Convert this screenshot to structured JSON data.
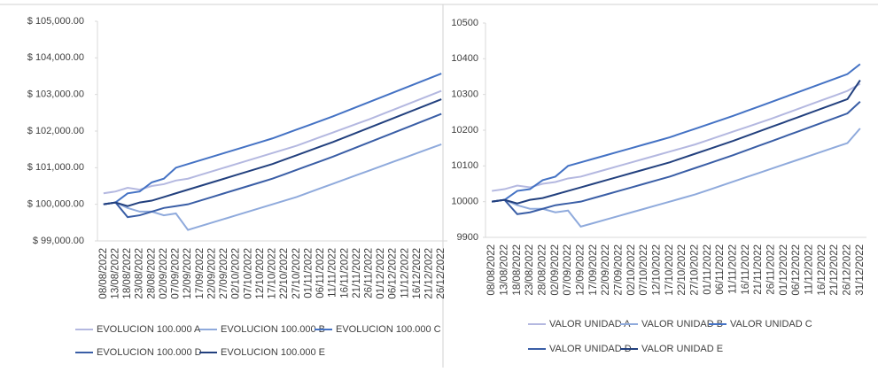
{
  "chart_data": [
    {
      "type": "line",
      "categories": [
        "08/08/2022",
        "13/08/2022",
        "18/08/2022",
        "23/08/2022",
        "28/08/2022",
        "02/09/2022",
        "07/09/2022",
        "12/09/2022",
        "17/09/2022",
        "22/09/2022",
        "27/09/2022",
        "02/10/2022",
        "07/10/2022",
        "12/10/2022",
        "17/10/2022",
        "22/10/2022",
        "27/10/2022",
        "01/11/2022",
        "06/11/2022",
        "11/11/2022",
        "16/11/2022",
        "21/11/2022",
        "26/11/2022",
        "01/12/2022",
        "06/12/2022",
        "11/12/2022",
        "16/12/2022",
        "21/12/2022",
        "26/12/2022"
      ],
      "ylim": [
        99000,
        105000
      ],
      "yticks": [
        {
          "value": 99000,
          "label": "$ 99,000.00"
        },
        {
          "value": 100000,
          "label": "$ 100,000.00"
        },
        {
          "value": 101000,
          "label": "$ 101,000.00"
        },
        {
          "value": 102000,
          "label": "$ 102,000.00"
        },
        {
          "value": 103000,
          "label": "$ 103,000.00"
        },
        {
          "value": 104000,
          "label": "$ 104,000.00"
        },
        {
          "value": 105000,
          "label": "$ 105,000.00"
        }
      ],
      "series": [
        {
          "name": "EVOLUCION 100.000 A",
          "color": "#b4b8e0",
          "values": [
            100300,
            100350,
            100450,
            100400,
            100500,
            100550,
            100650,
            100700,
            100800,
            100900,
            101000,
            101100,
            101200,
            101300,
            101400,
            101500,
            101600,
            101720,
            101840,
            101960,
            102080,
            102200,
            102320,
            102450,
            102580,
            102710,
            102840,
            102970,
            103100
          ]
        },
        {
          "name": "EVOLUCION 100.000 B",
          "color": "#8faadc",
          "values": [
            100000,
            100050,
            99900,
            99800,
            99800,
            99700,
            99750,
            99300,
            99400,
            99500,
            99600,
            99700,
            99800,
            99900,
            100000,
            100100,
            100200,
            100320,
            100440,
            100560,
            100680,
            100800,
            100920,
            101040,
            101160,
            101280,
            101400,
            101520,
            101640
          ]
        },
        {
          "name": "EVOLUCION 100.000 C",
          "color": "#4472c4",
          "values": [
            100000,
            100050,
            100300,
            100350,
            100600,
            100700,
            101000,
            101100,
            101200,
            101300,
            101400,
            101500,
            101600,
            101700,
            101800,
            101920,
            102040,
            102160,
            102280,
            102400,
            102530,
            102660,
            102790,
            102920,
            103050,
            103180,
            103310,
            103440,
            103570
          ]
        },
        {
          "name": "EVOLUCION 100.000 D",
          "color": "#3a5ea6",
          "values": [
            100000,
            100050,
            99650,
            99700,
            99800,
            99900,
            99950,
            100000,
            100100,
            100200,
            100300,
            100400,
            100500,
            100600,
            100700,
            100820,
            100940,
            101060,
            101180,
            101300,
            101430,
            101560,
            101690,
            101820,
            101950,
            102080,
            102210,
            102340,
            102470
          ]
        },
        {
          "name": "EVOLUCION 100.000 E",
          "color": "#22407e",
          "values": [
            100000,
            100050,
            99950,
            100050,
            100100,
            100200,
            100300,
            100400,
            100500,
            100600,
            100700,
            100800,
            100900,
            101000,
            101100,
            101220,
            101340,
            101460,
            101580,
            101700,
            101830,
            101960,
            102090,
            102220,
            102350,
            102480,
            102610,
            102740,
            102870
          ]
        }
      ]
    },
    {
      "type": "line",
      "categories": [
        "08/08/2022",
        "13/08/2022",
        "18/08/2022",
        "23/08/2022",
        "28/08/2022",
        "02/09/2022",
        "07/09/2022",
        "12/09/2022",
        "17/09/2022",
        "22/09/2022",
        "27/09/2022",
        "02/10/2022",
        "07/10/2022",
        "12/10/2022",
        "17/10/2022",
        "22/10/2022",
        "27/10/2022",
        "01/11/2022",
        "06/11/2022",
        "11/11/2022",
        "16/11/2022",
        "21/11/2022",
        "26/11/2022",
        "01/12/2022",
        "06/12/2022",
        "11/12/2022",
        "16/12/2022",
        "21/12/2022",
        "26/12/2022",
        "31/12/2022"
      ],
      "ylim": [
        9900,
        10500
      ],
      "yticks": [
        9900,
        10000,
        10100,
        10200,
        10300,
        10400,
        10500
      ],
      "series": [
        {
          "name": "VALOR UNIDAD A",
          "color": "#b4b8e0",
          "values": [
            10030,
            10035,
            10045,
            10040,
            10050,
            10055,
            10065,
            10070,
            10080,
            10090,
            10100,
            10110,
            10120,
            10130,
            10140,
            10150,
            10160,
            10172,
            10184,
            10196,
            10208,
            10220,
            10232,
            10245,
            10258,
            10271,
            10284,
            10297,
            10310,
            10330
          ]
        },
        {
          "name": "VALOR UNIDAD B",
          "color": "#8faadc",
          "values": [
            10000,
            10005,
            9990,
            9980,
            9980,
            9970,
            9975,
            9930,
            9940,
            9950,
            9960,
            9970,
            9980,
            9990,
            10000,
            10010,
            10020,
            10032,
            10044,
            10056,
            10068,
            10080,
            10092,
            10104,
            10116,
            10128,
            10140,
            10152,
            10164,
            10205
          ]
        },
        {
          "name": "VALOR UNIDAD C",
          "color": "#4472c4",
          "values": [
            10000,
            10005,
            10030,
            10035,
            10060,
            10070,
            10100,
            10110,
            10120,
            10130,
            10140,
            10150,
            10160,
            10170,
            10180,
            10192,
            10204,
            10216,
            10228,
            10240,
            10253,
            10266,
            10279,
            10292,
            10305,
            10318,
            10331,
            10344,
            10357,
            10385
          ]
        },
        {
          "name": "VALOR UNIDAD D",
          "color": "#3a5ea6",
          "values": [
            10000,
            10005,
            9965,
            9970,
            9980,
            9990,
            9995,
            10000,
            10010,
            10020,
            10030,
            10040,
            10050,
            10060,
            10070,
            10082,
            10094,
            10106,
            10118,
            10130,
            10143,
            10156,
            10169,
            10182,
            10195,
            10208,
            10221,
            10234,
            10247,
            10280
          ]
        },
        {
          "name": "VALOR UNIDAD E",
          "color": "#22407e",
          "values": [
            10000,
            10005,
            9995,
            10005,
            10010,
            10020,
            10030,
            10040,
            10050,
            10060,
            10070,
            10080,
            10090,
            10100,
            10110,
            10122,
            10134,
            10146,
            10158,
            10170,
            10183,
            10196,
            10209,
            10222,
            10235,
            10248,
            10261,
            10274,
            10287,
            10340
          ]
        }
      ]
    }
  ]
}
